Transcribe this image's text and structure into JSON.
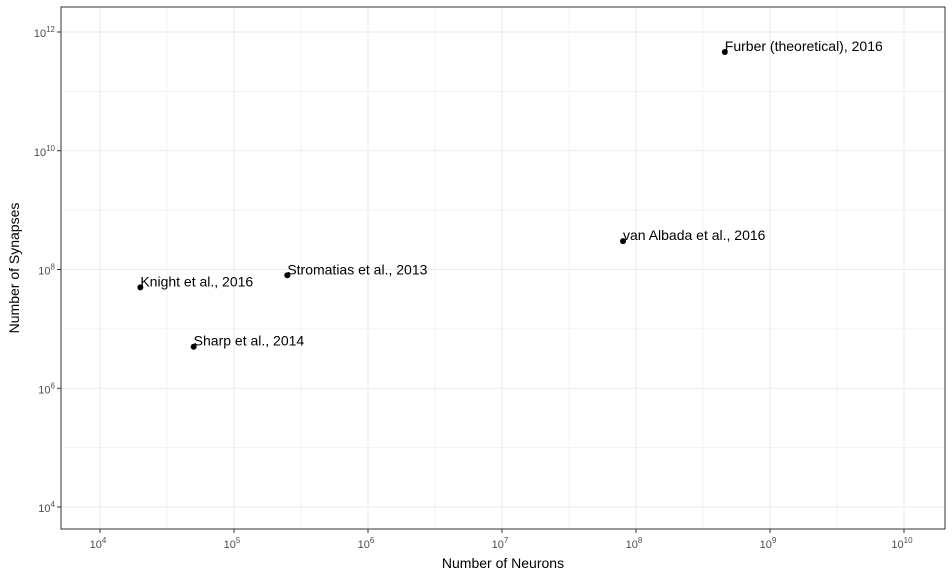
{
  "chart_data": {
    "type": "scatter",
    "xlabel": "Number of Neurons",
    "ylabel": "Number of Synapses",
    "x_scale": "log10",
    "y_scale": "log10",
    "xlim": [
      5000,
      35000000000
    ],
    "ylim": [
      4000,
      2000000000000
    ],
    "x_ticks": [
      {
        "value": 10000,
        "base": "10",
        "exp": "4"
      },
      {
        "value": 100000,
        "base": "10",
        "exp": "5"
      },
      {
        "value": 1000000,
        "base": "10",
        "exp": "6"
      },
      {
        "value": 10000000,
        "base": "10",
        "exp": "7"
      },
      {
        "value": 100000000,
        "base": "10",
        "exp": "8"
      },
      {
        "value": 1000000000,
        "base": "10",
        "exp": "9"
      },
      {
        "value": 10000000000,
        "base": "10",
        "exp": "10"
      }
    ],
    "y_ticks": [
      {
        "value": 10000,
        "base": "10",
        "exp": "4"
      },
      {
        "value": 1000000,
        "base": "10",
        "exp": "6"
      },
      {
        "value": 100000000,
        "base": "10",
        "exp": "8"
      },
      {
        "value": 10000000000,
        "base": "10",
        "exp": "10"
      },
      {
        "value": 1000000000000,
        "base": "10",
        "exp": "12"
      }
    ],
    "grid": true,
    "points": [
      {
        "label": "Furber (theoretical), 2016",
        "x": 460000000,
        "y": 460000000000
      },
      {
        "label": "van Albada et al., 2016",
        "x": 80000000,
        "y": 300000000
      },
      {
        "label": "Stromatias et al., 2013",
        "x": 250000,
        "y": 80000000
      },
      {
        "label": "Knight et al., 2016",
        "x": 20000,
        "y": 50000000
      },
      {
        "label": "Sharp et al., 2014",
        "x": 50000,
        "y": 5000000
      }
    ]
  },
  "point_colors": {
    "point": "#000000",
    "grid": "#ebebeb",
    "panel_border": "#333333"
  }
}
